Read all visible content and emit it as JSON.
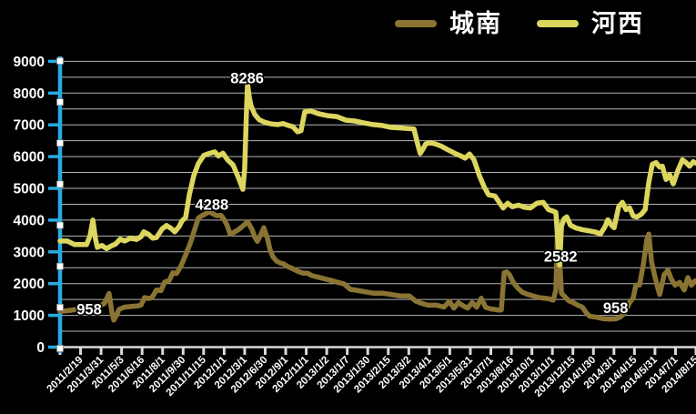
{
  "legend": [
    {
      "label": "城南",
      "color": "#8a7433"
    },
    {
      "label": "河西",
      "color": "#dcd65f"
    }
  ],
  "axes": {
    "y": {
      "min": 0,
      "max": 9000,
      "label_step": 1000,
      "grid_step": 500,
      "tick_labels": [
        "0",
        "1000",
        "2000",
        "3000",
        "4000",
        "5000",
        "6000",
        "7000",
        "8000",
        "9000"
      ],
      "axis_color": "#29abe2",
      "grid_color": "#b5b5b5",
      "label_color": "#ffffff"
    },
    "x": {
      "labels": [
        "2011/2/19",
        "2011/3/31",
        "2011/5/3",
        "2011/6/16",
        "2011/8/1",
        "2011/9/30",
        "2011/11/15",
        "2012/1/1",
        "2012/3/1",
        "2012/6/30",
        "2012/9/1",
        "2012/11/1",
        "2013/1/2",
        "2013/1/7",
        "2013/1/30",
        "2013/2/15",
        "2013/3/2",
        "2013/4/1",
        "2013/5/1",
        "2013/5/31",
        "2013/7/1",
        "2013/8/16",
        "2013/10/1",
        "2013/11/1",
        "2013/12/15",
        "2014/1/30",
        "2014/3/1",
        "2014/4/15",
        "2014/5/31",
        "2014/7/1",
        "2014/8/15"
      ],
      "axis_color": "#d9d9d9",
      "label_color": "#ffffff"
    }
  },
  "selection_handles": {
    "count": 8,
    "color": "#ffffff"
  },
  "chart_data": {
    "type": "line",
    "title": "",
    "ylim": [
      0,
      9000
    ],
    "grid": true,
    "legend_position": "top",
    "x_axis_note": "category axis; point x is position in label-band units 0..31",
    "annotations": [
      {
        "text": "958",
        "pos": 1.42,
        "value": 1210
      },
      {
        "text": "4288",
        "pos": 7.4,
        "value": 4500
      },
      {
        "text": "8286",
        "pos": 9.12,
        "value": 8480
      },
      {
        "text": "2582",
        "pos": 24.4,
        "value": 2870
      },
      {
        "text": "958",
        "pos": 27.08,
        "value": 1240
      }
    ],
    "series": [
      {
        "name": "城南",
        "color": "#8a7433",
        "points": [
          [
            0,
            1130
          ],
          [
            0.4,
            1150
          ],
          [
            0.84,
            1190
          ],
          [
            1.29,
            1250
          ],
          [
            1.64,
            1230
          ],
          [
            1.95,
            1300
          ],
          [
            2.17,
            1380
          ],
          [
            2.39,
            1690
          ],
          [
            2.53,
            1100
          ],
          [
            2.62,
            850
          ],
          [
            2.75,
            1000
          ],
          [
            2.88,
            1190
          ],
          [
            3.15,
            1260
          ],
          [
            3.5,
            1280
          ],
          [
            3.81,
            1300
          ],
          [
            3.95,
            1330
          ],
          [
            4.12,
            1560
          ],
          [
            4.3,
            1530
          ],
          [
            4.48,
            1560
          ],
          [
            4.7,
            1800
          ],
          [
            4.92,
            1780
          ],
          [
            5.1,
            2050
          ],
          [
            5.32,
            2100
          ],
          [
            5.5,
            2340
          ],
          [
            5.68,
            2320
          ],
          [
            5.9,
            2560
          ],
          [
            6.12,
            2900
          ],
          [
            6.34,
            3260
          ],
          [
            6.56,
            3700
          ],
          [
            6.74,
            4060
          ],
          [
            6.92,
            4140
          ],
          [
            7.1,
            4200
          ],
          [
            7.27,
            4260
          ],
          [
            7.45,
            4200
          ],
          [
            7.63,
            4140
          ],
          [
            7.85,
            4150
          ],
          [
            8.03,
            3980
          ],
          [
            8.16,
            3810
          ],
          [
            8.29,
            3560
          ],
          [
            8.47,
            3610
          ],
          [
            8.69,
            3700
          ],
          [
            8.91,
            3810
          ],
          [
            9.14,
            3950
          ],
          [
            9.36,
            3700
          ],
          [
            9.49,
            3470
          ],
          [
            9.62,
            3330
          ],
          [
            9.8,
            3560
          ],
          [
            9.93,
            3760
          ],
          [
            10.11,
            3420
          ],
          [
            10.24,
            3060
          ],
          [
            10.38,
            2840
          ],
          [
            10.55,
            2710
          ],
          [
            10.73,
            2650
          ],
          [
            10.91,
            2620
          ],
          [
            11.09,
            2540
          ],
          [
            11.31,
            2480
          ],
          [
            11.58,
            2390
          ],
          [
            11.84,
            2330
          ],
          [
            12.06,
            2330
          ],
          [
            12.28,
            2250
          ],
          [
            12.6,
            2200
          ],
          [
            12.91,
            2150
          ],
          [
            13.21,
            2100
          ],
          [
            13.53,
            2040
          ],
          [
            13.84,
            1990
          ],
          [
            14.15,
            1820
          ],
          [
            14.46,
            1790
          ],
          [
            14.81,
            1750
          ],
          [
            15.26,
            1700
          ],
          [
            15.7,
            1700
          ],
          [
            16.14,
            1660
          ],
          [
            16.59,
            1610
          ],
          [
            17.03,
            1610
          ],
          [
            17.34,
            1450
          ],
          [
            17.61,
            1380
          ],
          [
            17.92,
            1320
          ],
          [
            18.36,
            1320
          ],
          [
            18.71,
            1260
          ],
          [
            18.98,
            1440
          ],
          [
            19.2,
            1230
          ],
          [
            19.42,
            1400
          ],
          [
            19.65,
            1300
          ],
          [
            19.87,
            1230
          ],
          [
            20.09,
            1400
          ],
          [
            20.31,
            1260
          ],
          [
            20.53,
            1540
          ],
          [
            20.75,
            1250
          ],
          [
            21.02,
            1200
          ],
          [
            21.2,
            1190
          ],
          [
            21.33,
            1170
          ],
          [
            21.51,
            1170
          ],
          [
            21.65,
            2340
          ],
          [
            21.77,
            2370
          ],
          [
            21.9,
            2290
          ],
          [
            22.08,
            2050
          ],
          [
            22.31,
            1860
          ],
          [
            22.53,
            1730
          ],
          [
            22.75,
            1670
          ],
          [
            23.02,
            1620
          ],
          [
            23.37,
            1560
          ],
          [
            23.77,
            1530
          ],
          [
            24.04,
            1480
          ],
          [
            24.17,
            1800
          ],
          [
            24.26,
            3950
          ],
          [
            24.35,
            2800
          ],
          [
            24.44,
            1700
          ],
          [
            24.57,
            1610
          ],
          [
            24.79,
            1460
          ],
          [
            25.01,
            1405
          ],
          [
            25.23,
            1320
          ],
          [
            25.46,
            1260
          ],
          [
            25.63,
            1100
          ],
          [
            25.81,
            975
          ],
          [
            26.12,
            945
          ],
          [
            26.43,
            900
          ],
          [
            26.79,
            880
          ],
          [
            27.1,
            890
          ],
          [
            27.32,
            950
          ],
          [
            27.54,
            1090
          ],
          [
            27.76,
            1400
          ],
          [
            27.94,
            1550
          ],
          [
            28.07,
            1950
          ],
          [
            28.25,
            1960
          ],
          [
            28.43,
            2600
          ],
          [
            28.61,
            3400
          ],
          [
            28.7,
            3560
          ],
          [
            28.83,
            2700
          ],
          [
            28.96,
            2320
          ],
          [
            29.09,
            1980
          ],
          [
            29.23,
            1660
          ],
          [
            29.45,
            2280
          ],
          [
            29.63,
            2420
          ],
          [
            29.8,
            2140
          ],
          [
            29.98,
            1950
          ],
          [
            30.2,
            2040
          ],
          [
            30.43,
            1800
          ],
          [
            30.6,
            2190
          ],
          [
            30.78,
            1950
          ],
          [
            30.96,
            2090
          ]
        ]
      },
      {
        "name": "河西",
        "color": "#dcd65f",
        "points": [
          [
            0,
            3340
          ],
          [
            0.35,
            3340
          ],
          [
            0.71,
            3230
          ],
          [
            1.29,
            3230
          ],
          [
            1.46,
            3500
          ],
          [
            1.6,
            4000
          ],
          [
            1.73,
            3400
          ],
          [
            1.82,
            3140
          ],
          [
            2.04,
            3200
          ],
          [
            2.26,
            3100
          ],
          [
            2.48,
            3180
          ],
          [
            2.71,
            3250
          ],
          [
            2.93,
            3400
          ],
          [
            3.15,
            3340
          ],
          [
            3.42,
            3430
          ],
          [
            3.73,
            3390
          ],
          [
            3.95,
            3480
          ],
          [
            4.08,
            3630
          ],
          [
            4.3,
            3560
          ],
          [
            4.52,
            3430
          ],
          [
            4.7,
            3450
          ],
          [
            4.97,
            3720
          ],
          [
            5.19,
            3830
          ],
          [
            5.41,
            3740
          ],
          [
            5.59,
            3630
          ],
          [
            5.81,
            3800
          ],
          [
            5.94,
            3970
          ],
          [
            6.12,
            4080
          ],
          [
            6.3,
            4800
          ],
          [
            6.52,
            5400
          ],
          [
            6.74,
            5780
          ],
          [
            7.01,
            6040
          ],
          [
            7.27,
            6100
          ],
          [
            7.54,
            6150
          ],
          [
            7.72,
            6020
          ],
          [
            7.94,
            6110
          ],
          [
            8.16,
            5900
          ],
          [
            8.43,
            5740
          ],
          [
            8.69,
            5350
          ],
          [
            8.91,
            4970
          ],
          [
            9,
            5600
          ],
          [
            9.09,
            7500
          ],
          [
            9.14,
            8286
          ],
          [
            9.22,
            7900
          ],
          [
            9.31,
            7600
          ],
          [
            9.49,
            7330
          ],
          [
            9.71,
            7160
          ],
          [
            9.98,
            7080
          ],
          [
            10.29,
            7030
          ],
          [
            10.6,
            7010
          ],
          [
            10.87,
            7040
          ],
          [
            11.13,
            6980
          ],
          [
            11.35,
            6940
          ],
          [
            11.58,
            6780
          ],
          [
            11.75,
            6820
          ],
          [
            11.93,
            7410
          ],
          [
            12.2,
            7440
          ],
          [
            12.6,
            7350
          ],
          [
            13.04,
            7290
          ],
          [
            13.48,
            7260
          ],
          [
            13.93,
            7150
          ],
          [
            14.37,
            7120
          ],
          [
            14.81,
            7060
          ],
          [
            15.26,
            7010
          ],
          [
            15.7,
            6980
          ],
          [
            16.14,
            6920
          ],
          [
            16.68,
            6900
          ],
          [
            17.25,
            6870
          ],
          [
            17.43,
            6400
          ],
          [
            17.56,
            6100
          ],
          [
            17.7,
            6250
          ],
          [
            17.83,
            6400
          ],
          [
            18.05,
            6440
          ],
          [
            18.27,
            6400
          ],
          [
            18.58,
            6330
          ],
          [
            18.89,
            6220
          ],
          [
            19.25,
            6100
          ],
          [
            19.51,
            6030
          ],
          [
            19.74,
            5950
          ],
          [
            19.96,
            6080
          ],
          [
            20.18,
            5900
          ],
          [
            20.44,
            5400
          ],
          [
            20.67,
            5050
          ],
          [
            20.89,
            4800
          ],
          [
            21.2,
            4760
          ],
          [
            21.42,
            4550
          ],
          [
            21.6,
            4380
          ],
          [
            21.82,
            4530
          ],
          [
            22.04,
            4420
          ],
          [
            22.35,
            4470
          ],
          [
            22.66,
            4400
          ],
          [
            22.93,
            4380
          ],
          [
            23.24,
            4530
          ],
          [
            23.55,
            4560
          ],
          [
            23.81,
            4330
          ],
          [
            24.04,
            4280
          ],
          [
            24.17,
            4240
          ],
          [
            24.26,
            3400
          ],
          [
            24.35,
            2582
          ],
          [
            24.44,
            3800
          ],
          [
            24.57,
            4040
          ],
          [
            24.7,
            4100
          ],
          [
            24.88,
            3840
          ],
          [
            25.15,
            3750
          ],
          [
            25.46,
            3700
          ],
          [
            25.81,
            3660
          ],
          [
            26.12,
            3620
          ],
          [
            26.34,
            3560
          ],
          [
            26.57,
            3800
          ],
          [
            26.7,
            4010
          ],
          [
            26.88,
            3840
          ],
          [
            27.01,
            3760
          ],
          [
            27.23,
            4420
          ],
          [
            27.41,
            4560
          ],
          [
            27.59,
            4330
          ],
          [
            27.76,
            4390
          ],
          [
            27.94,
            4130
          ],
          [
            28.12,
            4100
          ],
          [
            28.34,
            4190
          ],
          [
            28.52,
            4330
          ],
          [
            28.7,
            5190
          ],
          [
            28.87,
            5760
          ],
          [
            29.05,
            5810
          ],
          [
            29.23,
            5670
          ],
          [
            29.36,
            5700
          ],
          [
            29.54,
            5280
          ],
          [
            29.72,
            5430
          ],
          [
            29.89,
            5140
          ],
          [
            30.12,
            5570
          ],
          [
            30.34,
            5900
          ],
          [
            30.51,
            5810
          ],
          [
            30.69,
            5700
          ],
          [
            30.87,
            5840
          ],
          [
            31,
            5790
          ]
        ]
      }
    ]
  }
}
